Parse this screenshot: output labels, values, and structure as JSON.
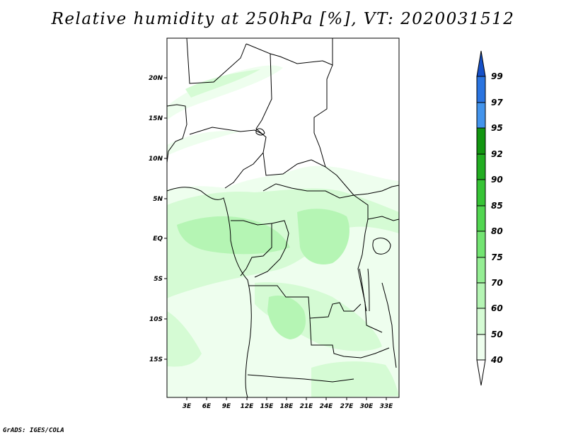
{
  "title": "Relative humidity at 250hPa [%], VT: 2020031512",
  "footer": "GrADS: IGES/COLA",
  "map": {
    "lat_labels": [
      "20N",
      "15N",
      "10N",
      "5N",
      "EQ",
      "5S",
      "10S",
      "15S"
    ],
    "lon_labels": [
      "3E",
      "6E",
      "9E",
      "12E",
      "15E",
      "18E",
      "21E",
      "24E",
      "27E",
      "30E",
      "33E"
    ]
  },
  "colorbar": {
    "levels": [
      "40",
      "50",
      "60",
      "70",
      "75",
      "80",
      "85",
      "90",
      "92",
      "95",
      "97",
      "99"
    ],
    "colors": {
      "c40_50": "#eefeee",
      "c50_60": "#d5fbd4",
      "c60_70": "#b5f5b4",
      "c70_75": "#95ee94",
      "c75_80": "#73e472",
      "c80_85": "#52d651",
      "c85_90": "#37c436",
      "c90_92": "#22ad21",
      "c92_95": "#129611",
      "c95_97": "#4394ec",
      "c97_99": "#2a74e0",
      "c99_up": "#1650c8"
    }
  }
}
